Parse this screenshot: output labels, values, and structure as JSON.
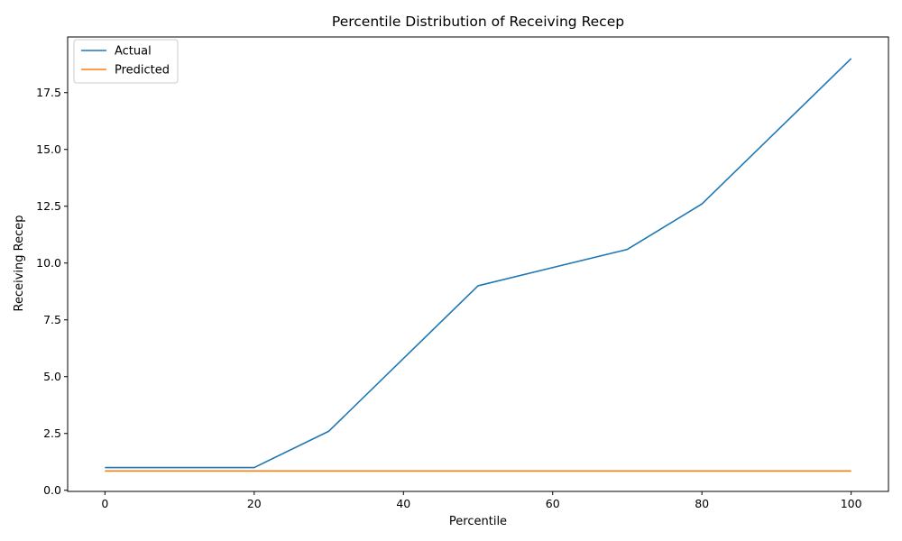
{
  "chart_data": {
    "type": "line",
    "title": "Percentile Distribution of Receiving Recep",
    "xlabel": "Percentile",
    "ylabel": "Receiving Recep",
    "xlim": [
      -5,
      105
    ],
    "ylim": [
      -0.05,
      19.95
    ],
    "x_ticks": [
      0,
      20,
      40,
      60,
      80,
      100
    ],
    "x_tick_labels": [
      "0",
      "20",
      "40",
      "60",
      "80",
      "100"
    ],
    "y_ticks": [
      0,
      2.5,
      5,
      7.5,
      10,
      12.5,
      15,
      17.5
    ],
    "y_tick_labels": [
      "0.0",
      "2.5",
      "5.0",
      "7.5",
      "10.0",
      "12.5",
      "15.0",
      "17.5"
    ],
    "grid": false,
    "legend_position": "top-left",
    "x": [
      0,
      10,
      20,
      30,
      40,
      50,
      60,
      70,
      80,
      90,
      100
    ],
    "series": [
      {
        "name": "Actual",
        "color": "#1f77b4",
        "values": [
          1.0,
          1.0,
          1.0,
          2.6,
          5.8,
          9.0,
          9.8,
          10.6,
          12.6,
          15.8,
          19.0
        ]
      },
      {
        "name": "Predicted",
        "color": "#ff7f0e",
        "values": [
          0.85,
          0.85,
          0.85,
          0.85,
          0.85,
          0.85,
          0.85,
          0.85,
          0.85,
          0.85,
          0.85
        ]
      }
    ]
  }
}
